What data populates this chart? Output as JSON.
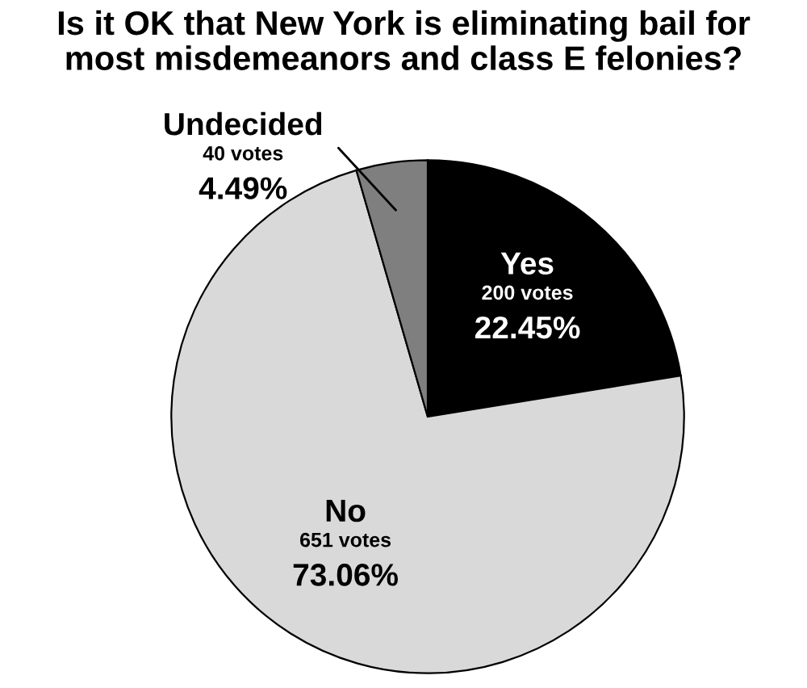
{
  "chart_data": {
    "type": "pie",
    "title": "Is it OK that New York is eliminating bail for\nmost misdemeanors and class E felonies?",
    "categories": [
      "Yes",
      "No",
      "Undecided"
    ],
    "values": [
      200,
      651,
      40
    ],
    "colors": [
      "#000000",
      "#d9d9d9",
      "#7f7f7f"
    ],
    "value_labels": [
      "200 votes",
      "651 votes",
      "40 votes"
    ],
    "annotations": [
      {
        "text": "22.45%",
        "x": "Yes"
      },
      {
        "text": "73.06%",
        "x": "No"
      },
      {
        "text": "4.49%",
        "x": "Undecided"
      }
    ],
    "legend": false
  }
}
